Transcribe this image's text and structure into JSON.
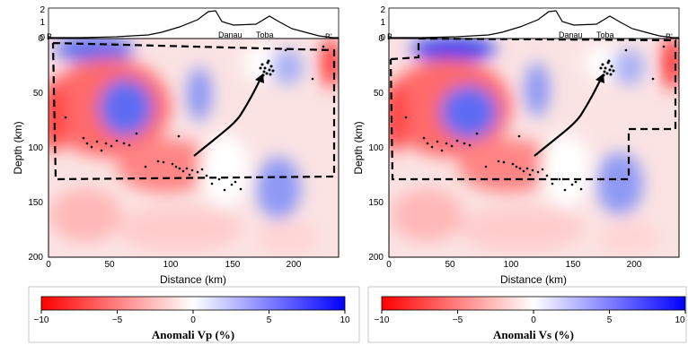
{
  "panels": [
    {
      "id": "vp",
      "colorbar_title": "Anomali Vp (%)",
      "xlabel": "Distance (km)",
      "ylabel": "Depth (km)",
      "end_left": "B",
      "end_right": "B'",
      "places": [
        "Danau",
        "Toba"
      ],
      "x_ticks": [
        "0",
        "50",
        "100",
        "150",
        "200"
      ],
      "y_ticks": [
        "0",
        "50",
        "100",
        "150",
        "200"
      ],
      "topo_ticks": [
        "2",
        "1",
        "0"
      ],
      "cb_ticks": [
        "−10",
        "−5",
        "0",
        "5",
        "10"
      ]
    },
    {
      "id": "vs",
      "colorbar_title": "Anomali Vs (%)",
      "xlabel": "Distance (km)",
      "ylabel": "Depth (km)",
      "end_left": "B",
      "end_right": "B'",
      "places": [
        "Danau",
        "Toba"
      ],
      "x_ticks": [
        "0",
        "50",
        "100",
        "150",
        "200"
      ],
      "y_ticks": [
        "0",
        "50",
        "100",
        "150",
        "200"
      ],
      "topo_ticks": [
        "2",
        "1",
        "0"
      ],
      "cb_ticks": [
        "−10",
        "−5",
        "0",
        "5",
        "10"
      ]
    }
  ],
  "axes": {
    "distance_range_km": [
      0,
      237
    ],
    "depth_range_km": [
      0,
      200
    ],
    "elevation_range_km": [
      0,
      2
    ],
    "colorbar_range_pct": [
      -10,
      10
    ]
  },
  "colors": {
    "negative": "#ff0000",
    "neutral": "#ffffff",
    "positive": "#0000ff",
    "lines": "#000000"
  }
}
